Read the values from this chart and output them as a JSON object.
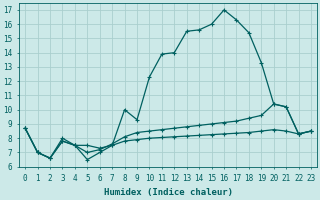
{
  "xlabel": "Humidex (Indice chaleur)",
  "bg_color": "#cce9e8",
  "grid_color": "#aacfce",
  "line_color": "#006060",
  "xlim": [
    -0.5,
    23.5
  ],
  "ylim": [
    6,
    17.5
  ],
  "xticks": [
    0,
    1,
    2,
    3,
    4,
    5,
    6,
    7,
    8,
    9,
    10,
    11,
    12,
    13,
    14,
    15,
    16,
    17,
    18,
    19,
    20,
    21,
    22,
    23
  ],
  "yticks": [
    6,
    7,
    8,
    9,
    10,
    11,
    12,
    13,
    14,
    15,
    16,
    17
  ],
  "line1_x": [
    0,
    1,
    2,
    3,
    4,
    5,
    6,
    7,
    8,
    9,
    10,
    11,
    12,
    13,
    14,
    15,
    16,
    17,
    18,
    19,
    20,
    21,
    22,
    23
  ],
  "line1_y": [
    8.7,
    7.0,
    6.6,
    8.0,
    7.5,
    6.5,
    7.0,
    7.5,
    10.0,
    9.3,
    12.3,
    13.9,
    14.0,
    15.5,
    15.6,
    16.0,
    17.0,
    16.3,
    15.4,
    13.3,
    10.4,
    10.2,
    8.3,
    8.5
  ],
  "line2_x": [
    0,
    1,
    2,
    3,
    4,
    5,
    6,
    7,
    8,
    9,
    10,
    11,
    12,
    13,
    14,
    15,
    16,
    17,
    18,
    19,
    20,
    21,
    22,
    23
  ],
  "line2_y": [
    8.7,
    7.0,
    6.6,
    7.8,
    7.5,
    7.0,
    7.2,
    7.6,
    8.1,
    8.4,
    8.5,
    8.6,
    8.7,
    8.8,
    8.9,
    9.0,
    9.1,
    9.2,
    9.4,
    9.6,
    10.4,
    10.2,
    8.3,
    8.5
  ],
  "line3_x": [
    0,
    1,
    2,
    3,
    4,
    5,
    6,
    7,
    8,
    9,
    10,
    11,
    12,
    13,
    14,
    15,
    16,
    17,
    18,
    19,
    20,
    21,
    22,
    23
  ],
  "line3_y": [
    8.7,
    7.0,
    6.6,
    7.8,
    7.5,
    7.5,
    7.3,
    7.5,
    7.8,
    7.9,
    8.0,
    8.05,
    8.1,
    8.15,
    8.2,
    8.25,
    8.3,
    8.35,
    8.4,
    8.5,
    8.6,
    8.5,
    8.3,
    8.5
  ]
}
